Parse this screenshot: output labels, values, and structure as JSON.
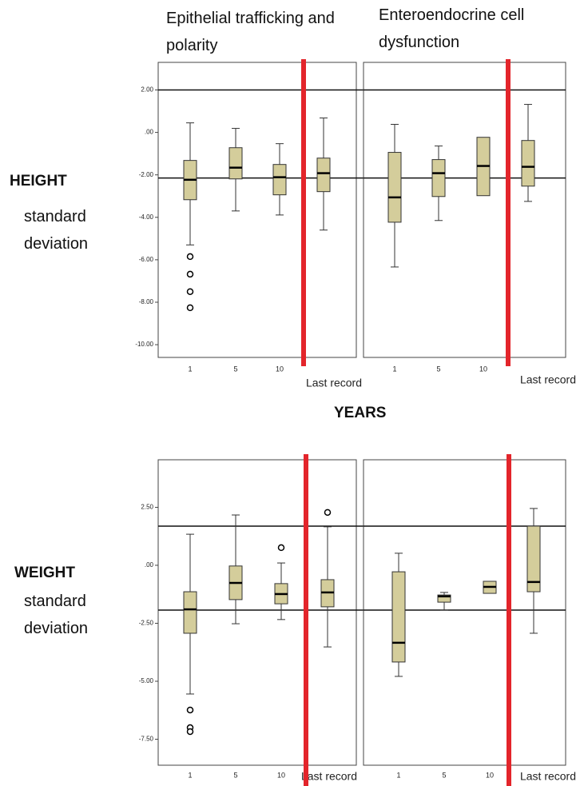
{
  "column_titles": [
    "Epithelial trafficking and polarity",
    "Enteroendocrine cell dysfunction"
  ],
  "row_titles": [
    {
      "title": "HEIGHT",
      "subtitle": "standard deviation"
    },
    {
      "title": "WEIGHT",
      "subtitle": "standard deviation"
    }
  ],
  "x_axis_label": "YEARS",
  "chart_data": [
    {
      "type": "box",
      "categories": [
        "1",
        "5",
        "10",
        "Last record"
      ],
      "color": "#d4cd9b",
      "divider_color": "#e3252b",
      "ylim": [
        -10.6,
        3.3
      ],
      "yticks": [
        {
          "value": 2,
          "label": "2.00"
        },
        {
          "value": 0,
          "label": ".00"
        },
        {
          "value": -2,
          "label": "-2.00"
        },
        {
          "value": -4,
          "label": "-4.00"
        },
        {
          "value": -6,
          "label": "-6.00"
        },
        {
          "value": -8,
          "label": "-8.00"
        },
        {
          "value": -10,
          "label": "-10.00"
        }
      ],
      "hlines": [
        2,
        -2.15
      ],
      "boxes": [
        {
          "whisker_low": -5.3,
          "q1": -3.17,
          "median": -2.23,
          "q3": -1.32,
          "whisker_high": 0.45,
          "outliers": [
            -5.85,
            -6.68,
            -7.5,
            -8.26
          ]
        },
        {
          "whisker_low": -3.7,
          "q1": -2.19,
          "median": -1.66,
          "q3": -0.72,
          "whisker_high": 0.19
        },
        {
          "whisker_low": -3.89,
          "q1": -2.94,
          "median": -2.11,
          "q3": -1.51,
          "whisker_high": -0.53
        },
        {
          "whisker_low": -4.6,
          "q1": -2.79,
          "median": -1.92,
          "q3": -1.21,
          "whisker_high": 0.68
        }
      ]
    },
    {
      "type": "box",
      "categories": [
        "1",
        "5",
        "10",
        "Last record"
      ],
      "color": "#d4cd9b",
      "divider_color": "#e3252b",
      "ylim": [
        -10.6,
        3.3
      ],
      "hlines": [
        2,
        -2.15
      ],
      "boxes": [
        {
          "whisker_low": -6.34,
          "q1": -4.23,
          "median": -3.06,
          "q3": -0.94,
          "whisker_high": 0.38
        },
        {
          "whisker_low": -4.15,
          "q1": -3.02,
          "median": -1.92,
          "q3": -1.28,
          "whisker_high": -0.64
        },
        {
          "q1": -2.98,
          "median": -1.58,
          "q3": -0.23
        },
        {
          "whisker_low": -3.25,
          "q1": -2.53,
          "median": -1.62,
          "q3": -0.38,
          "whisker_high": 1.32
        }
      ]
    },
    {
      "type": "box",
      "categories": [
        "1",
        "5",
        "10",
        "Last record"
      ],
      "color": "#d4cd9b",
      "divider_color": "#e3252b",
      "ylim": [
        -8.62,
        4.55
      ],
      "yticks": [
        {
          "value": 2.5,
          "label": "2.50"
        },
        {
          "value": 0,
          "label": ".00"
        },
        {
          "value": -2.5,
          "label": "-2.50"
        },
        {
          "value": -5,
          "label": "-5.00"
        },
        {
          "value": -7.5,
          "label": "-7.50"
        }
      ],
      "hlines": [
        1.69,
        -1.93
      ],
      "boxes": [
        {
          "whisker_low": -5.55,
          "q1": -2.93,
          "median": -1.9,
          "q3": -1.14,
          "whisker_high": 1.34,
          "outliers": [
            -6.24,
            -7.0,
            -7.17
          ]
        },
        {
          "whisker_low": -2.52,
          "q1": -1.48,
          "median": -0.76,
          "q3": -0.03,
          "whisker_high": 2.17
        },
        {
          "whisker_low": -2.34,
          "q1": -1.66,
          "median": -1.24,
          "q3": -0.79,
          "whisker_high": 0.1,
          "outliers": [
            0.76
          ]
        },
        {
          "whisker_low": -3.52,
          "q1": -1.79,
          "median": -1.17,
          "q3": -0.62,
          "whisker_high": 1.66,
          "outliers": [
            2.28
          ]
        }
      ]
    },
    {
      "type": "box",
      "categories": [
        "1",
        "5",
        "10",
        "Last record"
      ],
      "color": "#d4cd9b",
      "divider_color": "#e3252b",
      "ylim": [
        -8.62,
        4.55
      ],
      "hlines": [
        1.69,
        -1.93
      ],
      "boxes": [
        {
          "whisker_low": -4.79,
          "q1": -4.17,
          "median": -3.34,
          "q3": -0.28,
          "whisker_high": 0.52
        },
        {
          "whisker_low": -1.93,
          "q1": -1.59,
          "median": -1.34,
          "q3": -1.28,
          "whisker_high": -1.17
        },
        {
          "q1": -1.21,
          "median": -0.93,
          "q3": -0.69
        },
        {
          "whisker_low": -2.93,
          "q1": -1.14,
          "median": -0.72,
          "q3": 1.69,
          "whisker_high": 2.45
        }
      ]
    }
  ]
}
